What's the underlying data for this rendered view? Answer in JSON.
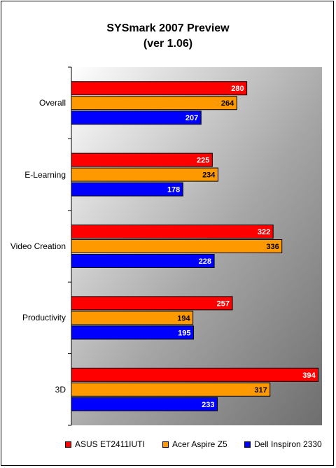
{
  "chart_data": {
    "type": "bar",
    "orientation": "horizontal",
    "title": "SYSmark 2007 Preview",
    "subtitle": "(ver 1.06)",
    "categories": [
      "Overall",
      "E-Learning",
      "Video Creation",
      "Productivity",
      "3D"
    ],
    "series": [
      {
        "name": "ASUS ET2411IUTI",
        "color": "#ff0000",
        "values": [
          280,
          225,
          322,
          257,
          394
        ]
      },
      {
        "name": "Acer Aspire Z5",
        "color": "#ff9900",
        "values": [
          264,
          234,
          336,
          194,
          317
        ]
      },
      {
        "name": "Dell Inspiron 2330",
        "color": "#0000ff",
        "values": [
          207,
          178,
          228,
          195,
          233
        ]
      }
    ],
    "xlim": [
      0,
      400
    ],
    "grid": false,
    "data_labels": true,
    "legend_position": "bottom",
    "plot_background": "gradient white-to-gray"
  }
}
